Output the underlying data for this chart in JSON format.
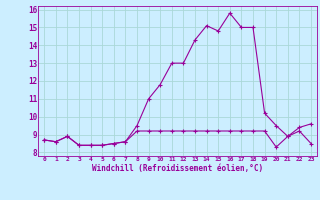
{
  "title": "",
  "xlabel": "Windchill (Refroidissement éolien,°C)",
  "background_color": "#cceeff",
  "line_color": "#990099",
  "xlim": [
    -0.5,
    23.5
  ],
  "ylim": [
    7.8,
    16.2
  ],
  "yticks": [
    8,
    9,
    10,
    11,
    12,
    13,
    14,
    15,
    16
  ],
  "xticks": [
    0,
    1,
    2,
    3,
    4,
    5,
    6,
    7,
    8,
    9,
    10,
    11,
    12,
    13,
    14,
    15,
    16,
    17,
    18,
    19,
    20,
    21,
    22,
    23
  ],
  "series1_x": [
    0,
    1,
    2,
    3,
    4,
    5,
    6,
    7,
    8,
    9,
    10,
    11,
    12,
    13,
    14,
    15,
    16,
    17,
    18,
    19,
    20,
    21,
    22,
    23
  ],
  "series1_y": [
    8.7,
    8.6,
    8.9,
    8.4,
    8.4,
    8.4,
    8.5,
    8.6,
    9.5,
    11.0,
    11.8,
    13.0,
    13.0,
    14.3,
    15.1,
    14.8,
    15.8,
    15.0,
    15.0,
    10.2,
    9.5,
    8.9,
    9.4,
    9.6
  ],
  "series2_x": [
    0,
    1,
    2,
    3,
    4,
    5,
    6,
    7,
    8,
    9,
    10,
    11,
    12,
    13,
    14,
    15,
    16,
    17,
    18,
    19,
    20,
    21,
    22,
    23
  ],
  "series2_y": [
    8.7,
    8.6,
    8.9,
    8.4,
    8.4,
    8.4,
    8.5,
    8.6,
    9.2,
    9.2,
    9.2,
    9.2,
    9.2,
    9.2,
    9.2,
    9.2,
    9.2,
    9.2,
    9.2,
    9.2,
    8.3,
    8.9,
    9.2,
    8.5
  ],
  "grid_color": "#aad8d8",
  "marker": "+"
}
